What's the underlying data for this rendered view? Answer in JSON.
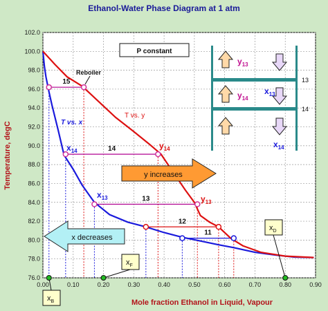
{
  "chart_data": {
    "type": "line",
    "title": "Ethanol-Water Phase Diagram at 1 atm",
    "xlabel": "Mole fraction Ethanol in Liquid, Vapour",
    "ylabel": "Temperature, degC",
    "xlim": [
      0,
      0.9
    ],
    "ylim": [
      76,
      102
    ],
    "x_ticks": [
      "0.00",
      "0.10",
      "0.20",
      "0.30",
      "0.40",
      "0.50",
      "0.60",
      "0.70",
      "0.80",
      "0.90"
    ],
    "y_ticks": [
      "76.0",
      "78.0",
      "80.0",
      "82.0",
      "84.0",
      "86.0",
      "88.0",
      "90.0",
      "92.0",
      "94.0",
      "96.0",
      "98.0",
      "100.0",
      "102.0"
    ],
    "grid": true,
    "series": [
      {
        "name": "T vs. x",
        "color": "#1a1adc",
        "points": [
          [
            0.0,
            100.0
          ],
          [
            0.005,
            98.4
          ],
          [
            0.01,
            97.3
          ],
          [
            0.02,
            95.7
          ],
          [
            0.03,
            94.3
          ],
          [
            0.05,
            91.7
          ],
          [
            0.07,
            89.0
          ],
          [
            0.1,
            87.5
          ],
          [
            0.13,
            85.8
          ],
          [
            0.17,
            84.0
          ],
          [
            0.22,
            82.7
          ],
          [
            0.28,
            81.9
          ],
          [
            0.34,
            81.4
          ],
          [
            0.4,
            80.8
          ],
          [
            0.46,
            80.3
          ],
          [
            0.52,
            79.9
          ],
          [
            0.58,
            79.5
          ],
          [
            0.63,
            79.2
          ],
          [
            0.7,
            78.7
          ],
          [
            0.77,
            78.4
          ],
          [
            0.83,
            78.2
          ],
          [
            0.894,
            78.15
          ]
        ]
      },
      {
        "name": "T vs. y",
        "color": "#dd1111",
        "points": [
          [
            0.0,
            100.0
          ],
          [
            0.04,
            98.6
          ],
          [
            0.08,
            97.3
          ],
          [
            0.13,
            96.3
          ],
          [
            0.18,
            94.8
          ],
          [
            0.24,
            93.0
          ],
          [
            0.3,
            91.5
          ],
          [
            0.35,
            90.2
          ],
          [
            0.39,
            89.1
          ],
          [
            0.43,
            87.2
          ],
          [
            0.47,
            85.3
          ],
          [
            0.5,
            84.0
          ],
          [
            0.52,
            82.6
          ],
          [
            0.55,
            81.9
          ],
          [
            0.58,
            81.4
          ],
          [
            0.62,
            80.2
          ],
          [
            0.66,
            79.4
          ],
          [
            0.72,
            78.7
          ],
          [
            0.8,
            78.3
          ],
          [
            0.894,
            78.15
          ]
        ]
      }
    ],
    "stage_points": [
      {
        "label": "15",
        "T": 96.2,
        "x": 0.02,
        "y": 0.135
      },
      {
        "label": "14",
        "T": 89.1,
        "x": 0.075,
        "y": 0.38
      },
      {
        "label": "13",
        "T": 83.8,
        "x": 0.17,
        "y": 0.51
      },
      {
        "label": "12",
        "T": 81.4,
        "x": 0.34,
        "y": 0.58
      },
      {
        "label": "11",
        "T": 80.2,
        "x": 0.46,
        "y": 0.63
      }
    ],
    "x_markers": [
      {
        "label": "x",
        "sub": "B",
        "value": 0.02
      },
      {
        "label": "x",
        "sub": "F",
        "value": 0.2
      },
      {
        "label": "x",
        "sub": "D",
        "value": 0.8
      }
    ],
    "annotations": {
      "p_constant": "P constant",
      "reboiler": "Reboiler",
      "y_increases": "y increases",
      "x_decreases": "x decreases",
      "t_vs_x": "T vs. x",
      "t_vs_y": "T vs. y",
      "x14": "x",
      "x14_sub": "14",
      "y14": "y",
      "y14_sub": "14",
      "x13": "x",
      "x13_sub": "13",
      "y13": "y",
      "y13_sub": "13"
    },
    "column_diagram": {
      "y13": "y",
      "y13_sub": "13",
      "y14": "y",
      "y14_sub": "14",
      "x13": "x",
      "x13_sub": "13",
      "x14": "x",
      "x14_sub": "14",
      "tray13": "13",
      "tray14": "14"
    }
  }
}
